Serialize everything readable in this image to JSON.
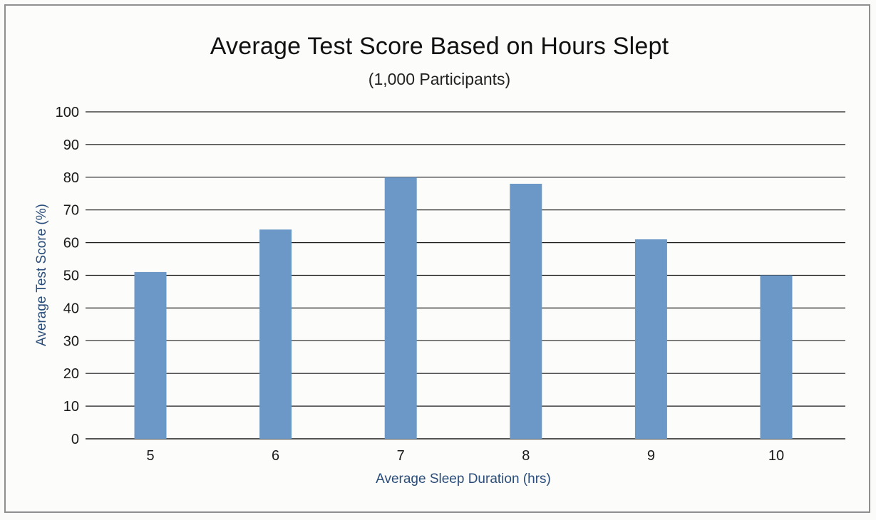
{
  "chart_data": {
    "type": "bar",
    "title": "Average Test Score Based on Hours Slept",
    "subtitle": "(1,000 Participants)",
    "xlabel": "Average Sleep Duration (hrs)",
    "ylabel": "Average Test Score (%)",
    "categories": [
      "5",
      "6",
      "7",
      "8",
      "9",
      "10"
    ],
    "values": [
      51,
      64,
      80,
      78,
      61,
      50
    ],
    "ylim": [
      0,
      100
    ],
    "yticks": [
      0,
      10,
      20,
      30,
      40,
      50,
      60,
      70,
      80,
      90,
      100
    ],
    "grid": true,
    "bar_color": "#6b98c6"
  }
}
